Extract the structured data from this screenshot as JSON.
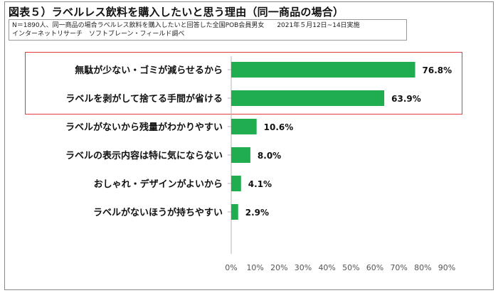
{
  "header": {
    "title": "図表５）ラベルレス飲料を購入したいと思う理由（同一商品の場合）",
    "note_line1": "N＝1890人、同一商品の場合ラベルレス飲料を購入したいと回答した全国POB会員男女　　2021年５月12日~14日実施",
    "note_line2": "インターネットリサーチ　ソフトブレーン・フィールド調べ"
  },
  "colors": {
    "bar": "#1fad4f",
    "highlight": "#e03a3a",
    "grid": "#d9d9d9"
  },
  "chart_data": {
    "type": "bar",
    "orientation": "horizontal",
    "categories": [
      "無駄が少ない・ゴミが減らせるから",
      "ラベルを剥がして捨てる手間が省ける",
      "ラベルがないから残量がわかりやすい",
      "ラベルの表示内容は特に気にならない",
      "おしゃれ・デザインがよいから",
      "ラベルがないほうが持ちやすい"
    ],
    "values": [
      76.8,
      63.9,
      10.6,
      8.0,
      4.1,
      2.9
    ],
    "value_labels": [
      "76.8%",
      "63.9%",
      "10.6%",
      "8.0%",
      "4.1%",
      "2.9%"
    ],
    "xlim": [
      0,
      90
    ],
    "ticks": [
      0,
      10,
      20,
      30,
      40,
      50,
      60,
      70,
      80,
      90
    ],
    "tick_labels": [
      "0%",
      "10%",
      "20%",
      "30%",
      "40%",
      "50%",
      "60%",
      "70%",
      "80%",
      "90%"
    ],
    "highlighted_categories": [
      0,
      1
    ],
    "grid": false
  }
}
